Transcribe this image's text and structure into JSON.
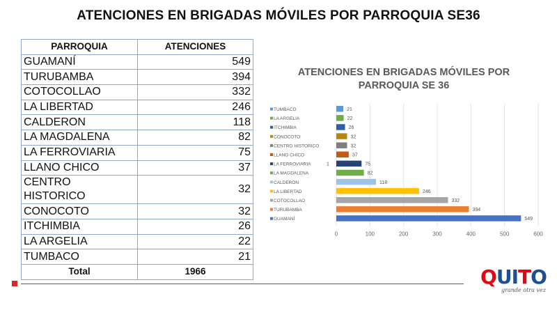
{
  "title": "ATENCIONES EN BRIGADAS MÓVILES POR PARROQUIA SE36",
  "table": {
    "headers": [
      "PARROQUIA",
      "ATENCIONES"
    ],
    "rows": [
      {
        "name": "GUAMANÍ",
        "value": "549"
      },
      {
        "name": "TURUBAMBA",
        "value": "394"
      },
      {
        "name": "COTOCOLLAO",
        "value": "332"
      },
      {
        "name": "LA LIBERTAD",
        "value": "246"
      },
      {
        "name": "CALDERON",
        "value": "118"
      },
      {
        "name": "LA MAGDALENA",
        "value": "82"
      },
      {
        "name": "LA FERROVIARIA",
        "value": "75"
      },
      {
        "name": "LLANO CHICO",
        "value": "37"
      },
      {
        "name": "CENTRO HISTORICO",
        "value": "32"
      },
      {
        "name": "CONOCOTO",
        "value": "32"
      },
      {
        "name": "ITCHIMBIA",
        "value": "26"
      },
      {
        "name": "LA ARGELIA",
        "value": "22"
      },
      {
        "name": "TUMBACO",
        "value": "21"
      }
    ],
    "total_label": "Total",
    "total_value": "1966"
  },
  "chart_data": {
    "type": "bar",
    "orientation": "horizontal",
    "title": "ATENCIONES EN BRIGADAS MÓVILES POR PARROQUIA SE 36",
    "categories": [
      "TUMBACO",
      "LA ARGELIA",
      "ITCHIMBIA",
      "CONOCOTO",
      "CENTRO HISTORICO",
      "LLANO CHICO",
      "LA FERROVIARIA",
      "LA MAGDALENA",
      "CALDERON",
      "LA LIBERTAD",
      "COTOCOLLAO",
      "TURUBAMBA",
      "GUAMANÍ"
    ],
    "values": [
      21,
      22,
      26,
      32,
      32,
      37,
      75,
      82,
      118,
      246,
      332,
      394,
      549
    ],
    "colors": [
      "#5b9bd5",
      "#70ad47",
      "#2e5fa1",
      "#b8860b",
      "#7f7f7f",
      "#c55a11",
      "#264478",
      "#70ad47",
      "#9dc3e6",
      "#ffc000",
      "#a5a5a5",
      "#ed7d31",
      "#4472c4"
    ],
    "stray_label": "1",
    "xticks": [
      0,
      100,
      200,
      300,
      400,
      500,
      600
    ],
    "xlim": [
      0,
      600
    ],
    "legend": "left"
  },
  "logo": {
    "letters": [
      "Q",
      "U",
      "I",
      "T",
      "O"
    ],
    "colors": [
      "#e30613",
      "#1d4f91",
      "#1d4f91",
      "#e30613",
      "#1d4f91"
    ],
    "tagline": "grande otra vez"
  }
}
